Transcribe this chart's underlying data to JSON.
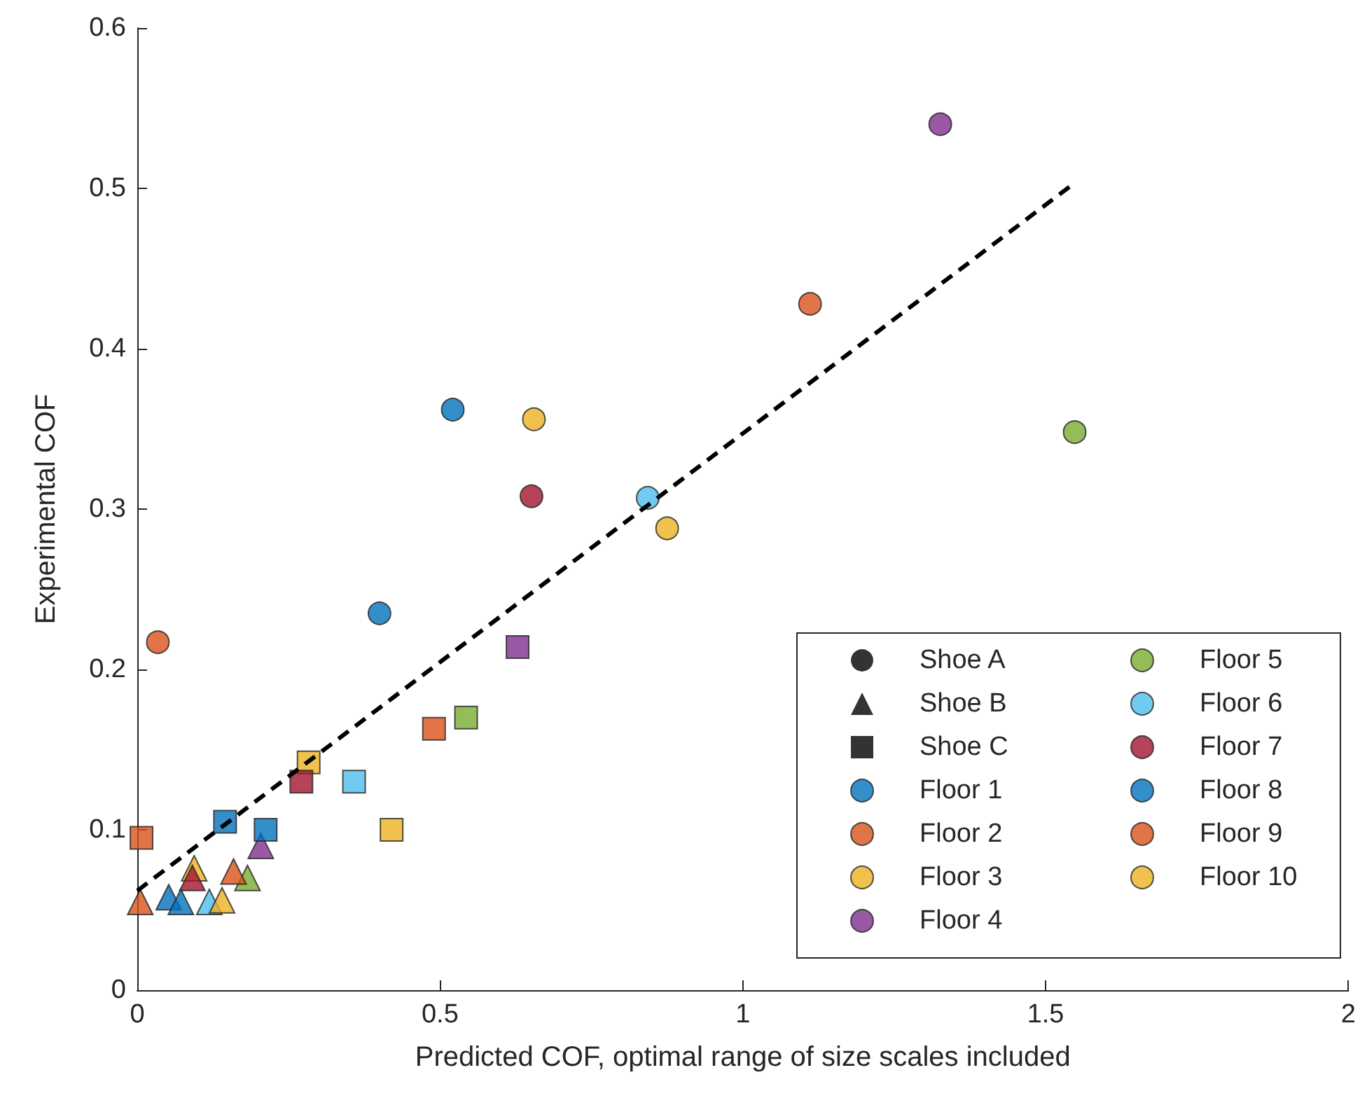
{
  "chart_data": {
    "type": "scatter",
    "xlabel": "Predicted COF, optimal range of size scales included",
    "ylabel": "Experimental COF",
    "xlim": [
      0,
      2
    ],
    "xticks": [
      0,
      0.5,
      1,
      1.5,
      2
    ],
    "ylim": [
      0,
      0.6
    ],
    "yticks": [
      0,
      0.1,
      0.2,
      0.3,
      0.4,
      0.5,
      0.6
    ],
    "grid": false,
    "legend": "bottom right",
    "series": [
      {
        "name": "Shoe A",
        "color": "#000000",
        "marker": "circle"
      },
      {
        "name": "Shoe B",
        "color": "#000000",
        "marker": "triangle"
      },
      {
        "name": "Shoe C",
        "color": "#000000",
        "marker": "square"
      },
      {
        "name": "Floor 1",
        "color": "#0072bd",
        "marker": "circle",
        "x": [
          0.4
        ],
        "values": [
          0.235
        ]
      },
      {
        "name": "Floor 2",
        "color": "#d95319",
        "marker": "circle",
        "x": [
          0.034
        ],
        "values": [
          0.217
        ]
      },
      {
        "name": "Floor 3",
        "color": "#edb120",
        "marker": "circle",
        "x": [
          0.655
        ],
        "values": [
          0.356
        ]
      },
      {
        "name": "Floor 4",
        "color": "#7e2f8e",
        "marker": "circle",
        "x": [
          1.326
        ],
        "values": [
          0.54
        ]
      },
      {
        "name": "Floor 5",
        "color": "#77ac30",
        "marker": "circle",
        "x": [
          1.548
        ],
        "values": [
          0.348
        ]
      },
      {
        "name": "Floor 6",
        "color": "#4dbeee",
        "marker": "circle",
        "x": [
          0.843
        ],
        "values": [
          0.307
        ]
      },
      {
        "name": "Floor 7",
        "color": "#a2142f",
        "marker": "circle",
        "x": [
          0.651
        ],
        "values": [
          0.308
        ]
      },
      {
        "name": "Floor 8",
        "color": "#0072bd",
        "marker": "circle",
        "x": [
          0.521
        ],
        "values": [
          0.362
        ]
      },
      {
        "name": "Floor 9",
        "color": "#d95319",
        "marker": "circle",
        "x": [
          1.111
        ],
        "values": [
          0.428
        ]
      },
      {
        "name": "Floor 10",
        "color": "#edb120",
        "marker": "circle",
        "x": [
          0.875
        ],
        "values": [
          0.288
        ]
      },
      {
        "marker": "triangle",
        "x": [
          0.052,
          0.005,
          0.094,
          0.204,
          0.182,
          0.119,
          0.091,
          0.072,
          0.159,
          0.14
        ],
        "values": [
          0.058,
          0.055,
          0.076,
          0.09,
          0.07,
          0.055,
          0.07,
          0.055,
          0.074,
          0.056
        ],
        "colors": [
          "#0072bd",
          "#d95319",
          "#edb120",
          "#7e2f8e",
          "#77ac30",
          "#4dbeee",
          "#a2142f",
          "#0072bd",
          "#d95319",
          "#edb120"
        ]
      },
      {
        "marker": "square",
        "x": [
          0.145,
          0.007,
          0.283,
          0.628,
          0.543,
          0.358,
          0.271,
          0.212,
          0.49,
          0.42
        ],
        "values": [
          0.105,
          0.095,
          0.142,
          0.214,
          0.17,
          0.13,
          0.13,
          0.1,
          0.163,
          0.1
        ],
        "colors": [
          "#0072bd",
          "#d95319",
          "#edb120",
          "#7e2f8e",
          "#77ac30",
          "#4dbeee",
          "#a2142f",
          "#0072bd",
          "#d95319",
          "#edb120"
        ]
      },
      {
        "type": "line",
        "color": "#000000",
        "marker": "none",
        "line_style": "dashed",
        "x": [
          0,
          1.55
        ],
        "values": [
          0.062,
          0.504
        ]
      }
    ]
  }
}
